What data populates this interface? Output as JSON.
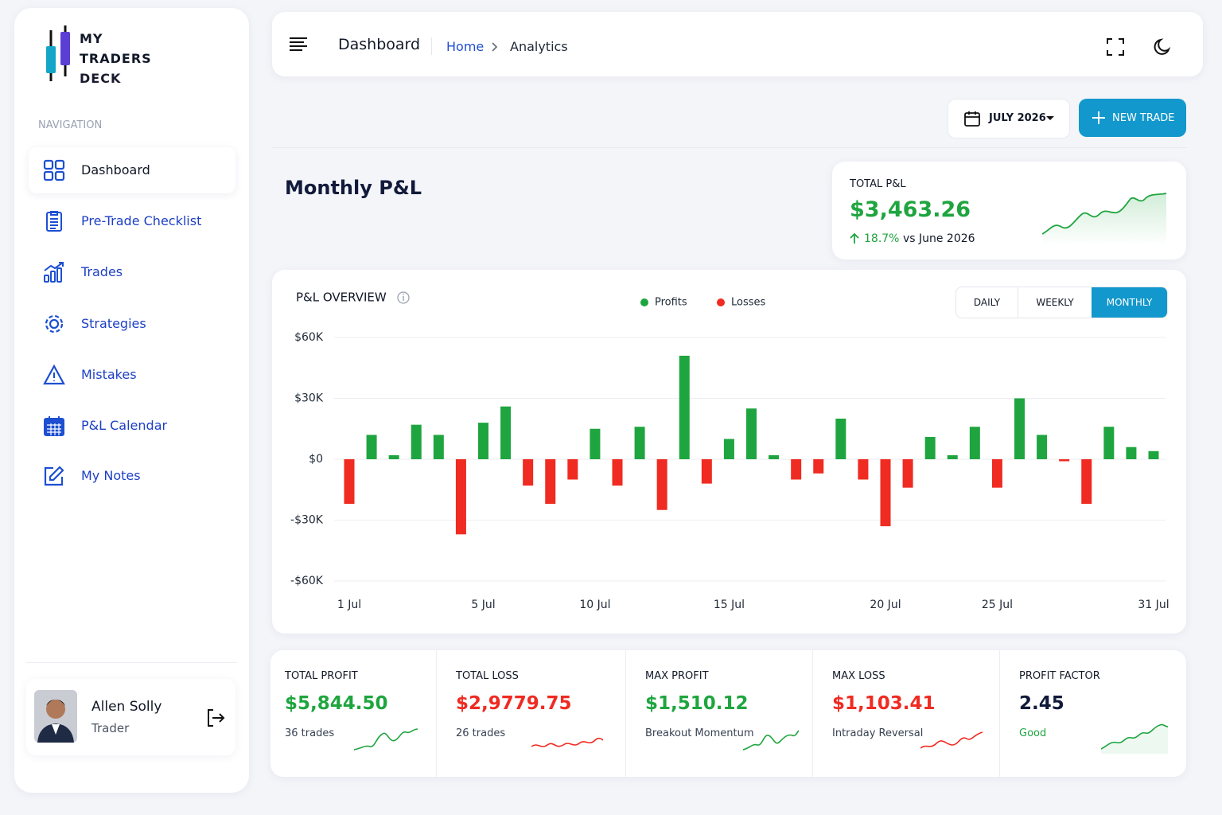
{
  "brand": {
    "line1": "MY",
    "line2": "TRADERS",
    "line3": "DECK"
  },
  "navigation": {
    "label": "NAVIGATION",
    "items": [
      "Dashboard",
      "Pre-Trade Checklist",
      "Trades",
      "Strategies",
      "Mistakes",
      "P&L Calendar",
      "My Notes"
    ]
  },
  "user": {
    "name": "Allen Solly",
    "role": "Trader"
  },
  "header": {
    "title": "Dashboard",
    "breadcrumb": [
      "Home",
      "Analytics"
    ]
  },
  "toolbar": {
    "month": "JULY 2026",
    "new_trade": "NEW TRADE"
  },
  "page_title": "Monthly P&L",
  "total_pnl": {
    "label": "TOTAL P&L",
    "value": "$3,463.26",
    "change": "18.7%",
    "compare": "vs June 2026"
  },
  "overview": {
    "toggles": [
      "DAILY",
      "WEEKLY",
      "MONTHLY"
    ]
  },
  "stats": [
    {
      "label": "TOTAL PROFIT",
      "value": "$5,844.50",
      "note": "36 trades"
    },
    {
      "label": "TOTAL LOSS",
      "value": "$2,9779.75",
      "note": "26 trades"
    },
    {
      "label": "MAX PROFIT",
      "value": "$1,510.12",
      "note": "Breakout Momentum"
    },
    {
      "label": "MAX LOSS",
      "value": "$1,103.41",
      "note": "Intraday Reversal"
    },
    {
      "label": "PROFIT FACTOR",
      "value": "2.45",
      "note": "Good"
    }
  ],
  "chart_data": {
    "type": "bar",
    "title": "P&L OVERVIEW",
    "categories": [
      "1 Jul",
      null,
      null,
      null,
      null,
      null,
      "5 Jul",
      null,
      null,
      null,
      null,
      "10 Jul",
      null,
      null,
      null,
      null,
      null,
      "15 Jul",
      null,
      null,
      null,
      null,
      null,
      null,
      "20 Jul",
      null,
      null,
      null,
      null,
      "25 Jul",
      null,
      null,
      null,
      null,
      null,
      null,
      "31 Jul"
    ],
    "series": [
      {
        "name": "Profits",
        "color": "#1fa53f",
        "values": [
          null,
          12000,
          2000,
          17000,
          12000,
          null,
          18000,
          26000,
          null,
          null,
          null,
          15000,
          null,
          16000,
          null,
          51000,
          null,
          10000,
          25000,
          2000,
          null,
          null,
          20000,
          null,
          null,
          null,
          11000,
          2000,
          16000,
          null,
          30000,
          12000,
          null,
          null,
          16000,
          6000,
          4000
        ]
      },
      {
        "name": "Losses",
        "color": "#ef2b22",
        "values": [
          -22000,
          null,
          null,
          null,
          null,
          -37000,
          null,
          null,
          -13000,
          -22000,
          -10000,
          null,
          -13000,
          null,
          -25000,
          null,
          -12000,
          null,
          null,
          null,
          -10000,
          -7000,
          null,
          -10000,
          -33000,
          -14000,
          null,
          null,
          null,
          -14000,
          null,
          null,
          -1000,
          -22000,
          null,
          null,
          null
        ]
      }
    ],
    "ylim": [
      -60000,
      60000
    ],
    "yticks": [
      {
        "value": 60000,
        "label": "$60K"
      },
      {
        "value": 30000,
        "label": "$30K"
      },
      {
        "value": 0,
        "label": "$0"
      },
      {
        "value": -30000,
        "label": "-$30K"
      },
      {
        "value": -60000,
        "label": "-$60K"
      }
    ],
    "grid": true
  }
}
